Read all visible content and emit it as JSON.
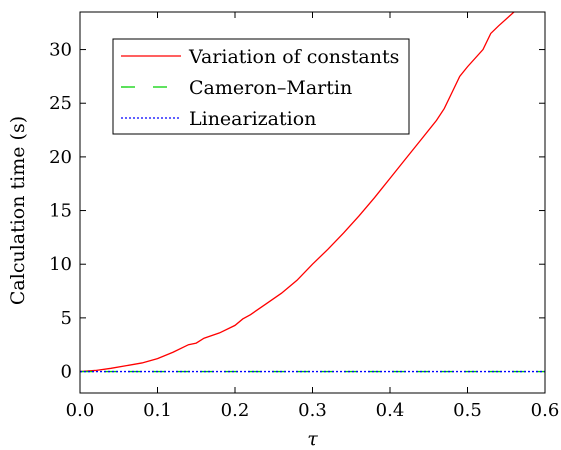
{
  "chart_data": {
    "type": "line",
    "xlabel": "τ",
    "ylabel": "Calculation time (s)",
    "xlim": [
      0.0,
      0.6
    ],
    "ylim": [
      -2,
      33.5
    ],
    "xticks": [
      0.0,
      0.1,
      0.2,
      0.3,
      0.4,
      0.5,
      0.6
    ],
    "xtick_labels": [
      "0.0",
      "0.1",
      "0.2",
      "0.3",
      "0.4",
      "0.5",
      "0.6"
    ],
    "yticks": [
      0,
      5,
      10,
      15,
      20,
      25,
      30
    ],
    "ytick_labels": [
      "0",
      "5",
      "10",
      "15",
      "20",
      "25",
      "30"
    ],
    "grid": false,
    "legend_position": "top-left",
    "series": [
      {
        "name": "Variation of constants",
        "color": "#ff0000",
        "dash": "solid",
        "x": [
          0.0,
          0.02,
          0.04,
          0.06,
          0.08,
          0.1,
          0.12,
          0.14,
          0.15,
          0.16,
          0.18,
          0.2,
          0.21,
          0.22,
          0.24,
          0.26,
          0.28,
          0.3,
          0.32,
          0.34,
          0.36,
          0.38,
          0.4,
          0.42,
          0.44,
          0.46,
          0.47,
          0.48,
          0.49,
          0.5,
          0.52,
          0.53,
          0.54,
          0.56,
          0.57
        ],
        "y": [
          0.0,
          0.1,
          0.3,
          0.55,
          0.8,
          1.2,
          1.8,
          2.5,
          2.65,
          3.1,
          3.6,
          4.3,
          4.9,
          5.3,
          6.3,
          7.3,
          8.5,
          10.0,
          11.4,
          12.9,
          14.5,
          16.2,
          18.0,
          19.8,
          21.6,
          23.4,
          24.5,
          26.0,
          27.5,
          28.4,
          30.0,
          31.5,
          32.2,
          33.5,
          34.0
        ]
      },
      {
        "name": "Cameron–Martin",
        "color": "#00d000",
        "dash": "long-dash",
        "x": [
          0.0,
          0.6
        ],
        "y": [
          0.0,
          0.0
        ]
      },
      {
        "name": "Linearization",
        "color": "#0000ff",
        "dash": "dotted",
        "x": [
          0.0,
          0.6
        ],
        "y": [
          0.0,
          0.0
        ]
      }
    ]
  }
}
